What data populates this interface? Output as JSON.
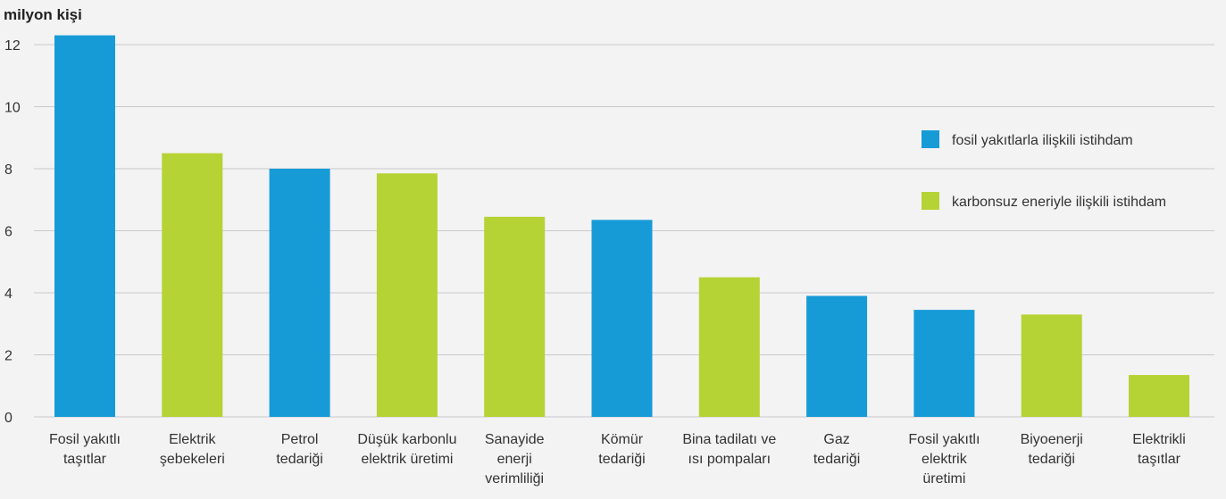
{
  "chart_data": {
    "type": "bar",
    "ylabel": "milyon kişi",
    "ylim": [
      0,
      12
    ],
    "yticks": [
      "0",
      "2",
      "4",
      "6",
      "8",
      "10",
      "12"
    ],
    "grid": true,
    "legend_position": "right",
    "categories": [
      [
        "Fosil yakıtlı",
        "taşıtlar"
      ],
      [
        "Elektrik",
        "şebekeleri"
      ],
      [
        "Petrol",
        "tedariği"
      ],
      [
        "Düşük karbonlu",
        "elektrik üretimi"
      ],
      [
        "Sanayide",
        "enerji",
        "verimliliği"
      ],
      [
        "Kömür",
        "tedariği"
      ],
      [
        "Bina tadilatı ve",
        "ısı pompaları"
      ],
      [
        "Gaz",
        "tedariği"
      ],
      [
        "Fosil yakıtlı",
        "elektrik",
        "üretimi"
      ],
      [
        "Biyoenerji",
        "tedariği"
      ],
      [
        "Elektrikli",
        "taşıtlar"
      ]
    ],
    "values": [
      12.3,
      8.5,
      8.0,
      7.85,
      6.45,
      6.35,
      4.5,
      3.9,
      3.45,
      3.3,
      1.35
    ],
    "groups": [
      0,
      1,
      0,
      1,
      1,
      0,
      1,
      0,
      0,
      1,
      1
    ],
    "legend": [
      {
        "name": "fosil yakıtlarla ilişkili istihdam",
        "color": "#169bd7"
      },
      {
        "name": "karbonsuz eneriyle ilişkili istihdam",
        "color": "#b5d334"
      }
    ]
  }
}
